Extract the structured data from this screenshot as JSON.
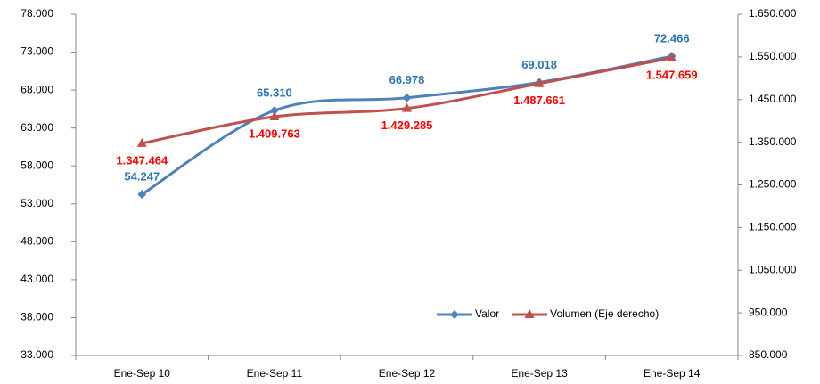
{
  "chart_data": {
    "type": "line",
    "smooth": true,
    "categories": [
      "Ene-Sep 10",
      "Ene-Sep 11",
      "Ene-Sep 12",
      "Ene-Sep 13",
      "Ene-Sep 14"
    ],
    "series": [
      {
        "name": "Valor",
        "color": "#4f81bd",
        "label_color": "#2e75b6",
        "marker": "diamond",
        "axis": "y",
        "values": [
          54247,
          65310,
          66978,
          69018,
          72466
        ],
        "value_labels": [
          "54.247",
          "65.310",
          "66.978",
          "69.018",
          "72.466"
        ]
      },
      {
        "name": "Volumen (Eje derecho)",
        "color": "#c0504d",
        "label_color": "#ff0000",
        "marker": "triangle",
        "axis": "y2",
        "values": [
          1347464,
          1409763,
          1429285,
          1487661,
          1547659
        ],
        "value_labels": [
          "1.347.464",
          "1.409.763",
          "1.429.285",
          "1.487.661",
          "1.547.659"
        ]
      }
    ],
    "ylim": [
      33000,
      78000
    ],
    "yticks": [
      {
        "value": 33000,
        "label": "33.000"
      },
      {
        "value": 38000,
        "label": "38.000"
      },
      {
        "value": 43000,
        "label": "43.000"
      },
      {
        "value": 48000,
        "label": "48.000"
      },
      {
        "value": 53000,
        "label": "53.000"
      },
      {
        "value": 58000,
        "label": "58.000"
      },
      {
        "value": 63000,
        "label": "63.000"
      },
      {
        "value": 68000,
        "label": "68.000"
      },
      {
        "value": 73000,
        "label": "73.000"
      },
      {
        "value": 78000,
        "label": "78.000"
      }
    ],
    "y2lim": [
      850000,
      1650000
    ],
    "y2ticks": [
      {
        "value": 850000,
        "label": "850.000"
      },
      {
        "value": 950000,
        "label": "950.000"
      },
      {
        "value": 1050000,
        "label": "1.050.000"
      },
      {
        "value": 1150000,
        "label": "1.150.000"
      },
      {
        "value": 1250000,
        "label": "1.250.000"
      },
      {
        "value": 1350000,
        "label": "1.350.000"
      },
      {
        "value": 1450000,
        "label": "1.450.000"
      },
      {
        "value": 1550000,
        "label": "1.550.000"
      },
      {
        "value": 1650000,
        "label": "1.650.000"
      }
    ],
    "grid": false,
    "legend": "lower right"
  }
}
